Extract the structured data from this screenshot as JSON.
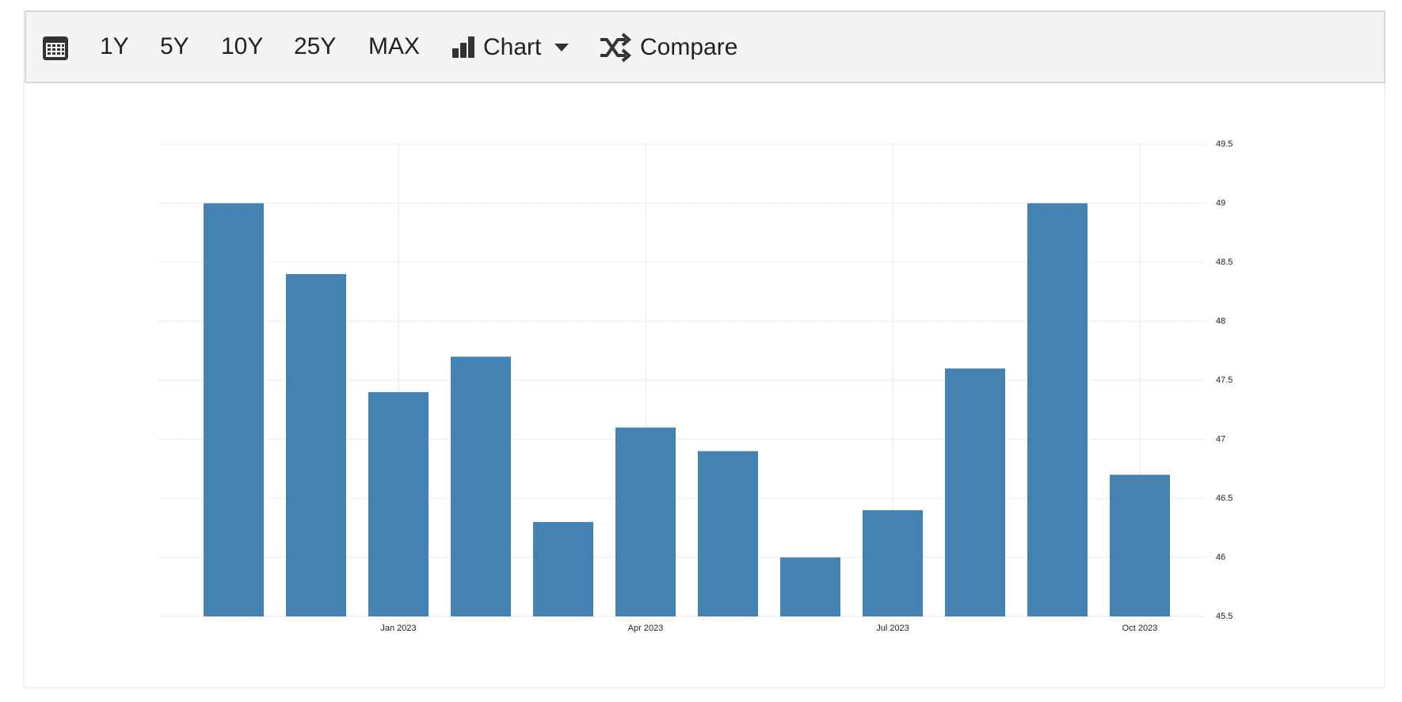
{
  "toolbar": {
    "ranges": [
      "1Y",
      "5Y",
      "10Y",
      "25Y",
      "MAX"
    ],
    "chart_button": "Chart",
    "compare_button": "Compare"
  },
  "chart_data": {
    "type": "bar",
    "categories": [
      null,
      null,
      "Jan 2023",
      null,
      null,
      "Apr 2023",
      null,
      null,
      "Jul 2023",
      null,
      null,
      "Oct 2023"
    ],
    "values": [
      49,
      48.4,
      47.4,
      47.7,
      46.3,
      47.1,
      46.9,
      46,
      46.4,
      47.6,
      49,
      46.7
    ],
    "color": "#4482b4",
    "ylim": [
      45.5,
      49.5
    ],
    "yticks": [
      45.5,
      46,
      46.5,
      47,
      47.5,
      48,
      48.5,
      49,
      49.5
    ],
    "grid": true
  }
}
